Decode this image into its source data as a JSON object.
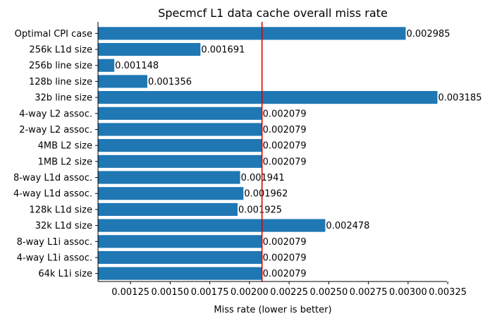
{
  "chart_data": {
    "type": "bar",
    "orientation": "horizontal",
    "title": "Specmcf L1 data cache overall miss rate",
    "xlabel": "Miss rate (lower is better)",
    "ylabel": "",
    "categories": [
      "Optimal CPI case",
      "256k L1d size",
      "256b line size",
      "128b line size",
      "32b line size",
      "4-way L2 assoc.",
      "2-way L2 assoc.",
      "4MB L2 size",
      "1MB L2 size",
      "8-way L1d assoc.",
      "4-way L1d assoc.",
      "128k L1d size",
      "32k L1d size",
      "8-way L1i assoc.",
      "4-way L1i assoc.",
      "64k L1i size"
    ],
    "values": [
      0.002985,
      0.001691,
      0.001148,
      0.001356,
      0.003185,
      0.002079,
      0.002079,
      0.002079,
      0.002079,
      0.001941,
      0.001962,
      0.001925,
      0.002478,
      0.002079,
      0.002079,
      0.002079
    ],
    "value_labels": [
      "0.002985",
      "0.001691",
      "0.001148",
      "0.001356",
      "0.003185",
      "0.002079",
      "0.002079",
      "0.002079",
      "0.002079",
      "0.001941",
      "0.001962",
      "0.001925",
      "0.002478",
      "0.002079",
      "0.002079",
      "0.002079"
    ],
    "xlim": [
      0.001045,
      0.003245
    ],
    "xticks": [
      0.00125,
      0.0015,
      0.00175,
      0.002,
      0.00225,
      0.0025,
      0.00275,
      0.003,
      0.00325
    ],
    "xtick_labels": [
      "0.00125",
      "0.00150",
      "0.00175",
      "0.00200",
      "0.00225",
      "0.00250",
      "0.00275",
      "0.00300",
      "0.00325"
    ],
    "reference_line": {
      "value": 0.002079,
      "orientation": "vertical"
    },
    "grid": false,
    "legend": "none",
    "colors": {
      "bar": "#1f77b4",
      "reference_line": "#e00000",
      "axis": "#000000"
    }
  }
}
